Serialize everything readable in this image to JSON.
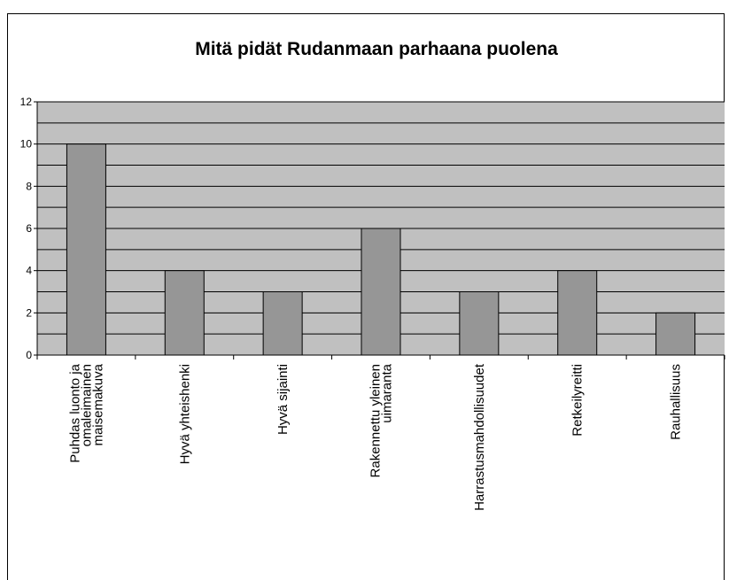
{
  "chart_data": {
    "type": "bar",
    "title": "Mitä pidät Rudanmaan parhaana puolena",
    "categories": [
      "Puhdas luonto ja omaleimainen maisemakuva",
      "Hyvä yhteishenki",
      "Hyvä sijainti",
      "Rakennettu yleinen uimaranta",
      "Harrastusmahdollisuudet",
      "Retkeilyreitti",
      "Rauhallisuus"
    ],
    "values": [
      10,
      4,
      3,
      6,
      3,
      4,
      2
    ],
    "color": "#969696",
    "ylim": [
      0,
      12
    ],
    "yticks": [
      0,
      2,
      4,
      6,
      8,
      10,
      12
    ],
    "minor_yticks": [
      1,
      3,
      5,
      7,
      9,
      11
    ],
    "grid": true
  }
}
